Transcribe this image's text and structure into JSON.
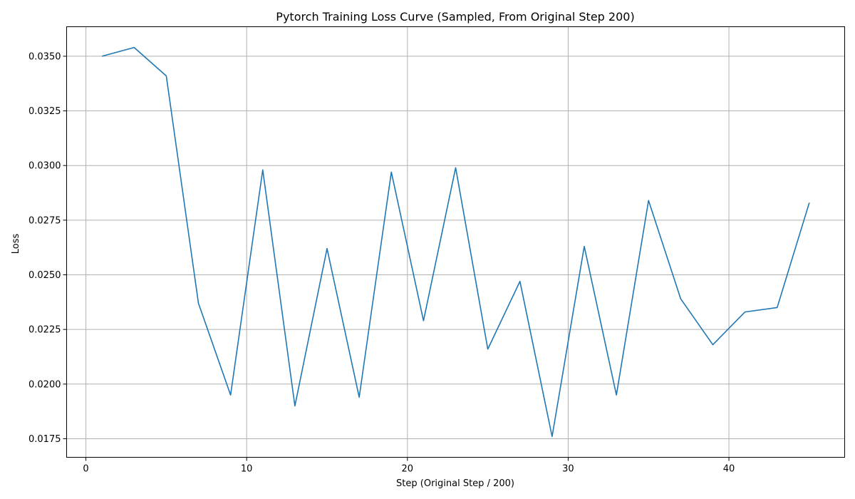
{
  "chart_data": {
    "type": "line",
    "title": "Pytorch Training Loss Curve (Sampled, From Original Step 200)",
    "xlabel": "Step (Original Step / 200)",
    "ylabel": "Loss",
    "xlim": [
      -1.2,
      47.2
    ],
    "ylim": [
      0.01665,
      0.03635
    ],
    "xticks": [
      0,
      10,
      20,
      30,
      40
    ],
    "xtick_labels": [
      "0",
      "10",
      "20",
      "30",
      "40"
    ],
    "yticks": [
      0.0175,
      0.02,
      0.0225,
      0.025,
      0.0275,
      0.03,
      0.0325,
      0.035
    ],
    "ytick_labels": [
      "0.0175",
      "0.0200",
      "0.0225",
      "0.0250",
      "0.0275",
      "0.0300",
      "0.0325",
      "0.0350"
    ],
    "grid": true,
    "series": [
      {
        "name": "Loss",
        "color": "#1f77b4",
        "x": [
          1,
          3,
          5,
          7,
          9,
          11,
          13,
          15,
          17,
          19,
          21,
          23,
          25,
          27,
          29,
          31,
          33,
          35,
          37,
          39,
          41,
          43,
          45
        ],
        "y": [
          0.035,
          0.0354,
          0.0341,
          0.0237,
          0.0195,
          0.0298,
          0.019,
          0.0262,
          0.0194,
          0.0297,
          0.0229,
          0.0299,
          0.0216,
          0.0247,
          0.0176,
          0.0263,
          0.0195,
          0.0284,
          0.0239,
          0.0218,
          0.0233,
          0.0235,
          0.0283
        ]
      }
    ]
  }
}
